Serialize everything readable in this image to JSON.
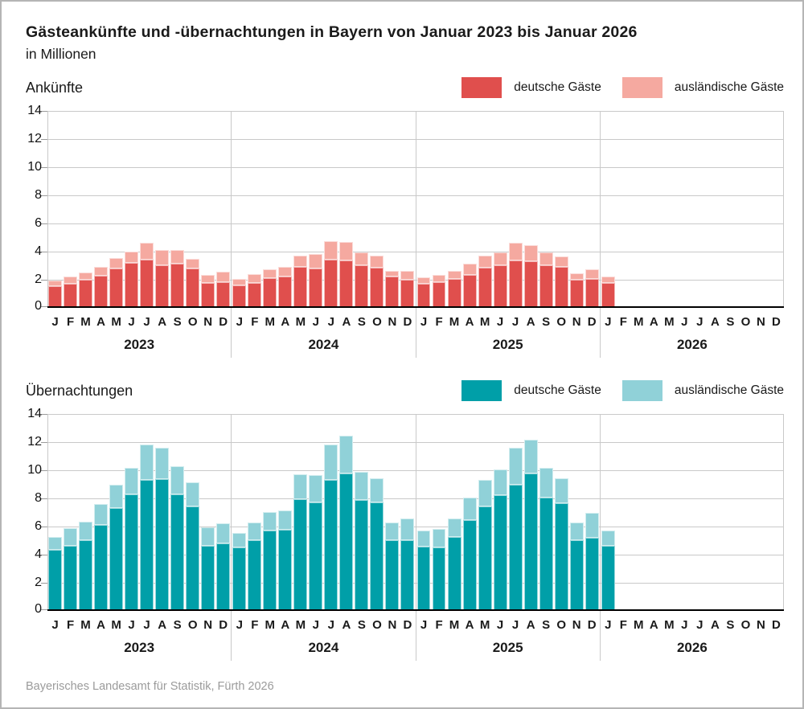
{
  "title": "Gästeankünfte und -übernachtungen in Bayern von Januar 2023 bis Januar 2026",
  "subtitle": "in Millionen",
  "source": "Bayerisches Landesamt für Statistik, Fürth 2026",
  "chart_data": [
    {
      "type": "bar",
      "stacked": true,
      "section_label": "Ankünfte",
      "unit": "Millionen",
      "ylim": [
        0,
        14
      ],
      "ytick_step": 2,
      "yticks": [
        0,
        2,
        4,
        6,
        8,
        10,
        12,
        14
      ],
      "grid": true,
      "legend_position": "top-right",
      "years": [
        "2023",
        "2024",
        "2025",
        "2026"
      ],
      "months": [
        "J",
        "F",
        "M",
        "A",
        "M",
        "J",
        "J",
        "A",
        "S",
        "O",
        "N",
        "D"
      ],
      "legend": [
        {
          "label": "deutsche Gäste",
          "color": "#e04f4d"
        },
        {
          "label": "ausländische Gäste",
          "color": "#f5a9a0"
        }
      ],
      "series": [
        {
          "name": "deutsche Gäste",
          "color": "#e04f4d",
          "values_by_year": {
            "2023": [
              1.55,
              1.7,
              2.0,
              2.3,
              2.8,
              3.2,
              3.45,
              3.0,
              3.15,
              2.8,
              1.75,
              1.8
            ],
            "2024": [
              1.6,
              1.75,
              2.1,
              2.2,
              2.9,
              2.8,
              3.45,
              3.35,
              3.0,
              2.85,
              2.2,
              2.0
            ],
            "2025": [
              1.7,
              1.8,
              2.05,
              2.35,
              2.85,
              3.05,
              3.35,
              3.3,
              3.0,
              2.9,
              2.0,
              2.05
            ],
            "2026": [
              1.75,
              null,
              null,
              null,
              null,
              null,
              null,
              null,
              null,
              null,
              null,
              null
            ]
          }
        },
        {
          "name": "ausländische Gäste",
          "color": "#f5a9a0",
          "values_by_year": {
            "2023": [
              0.4,
              0.5,
              0.5,
              0.6,
              0.75,
              0.8,
              1.2,
              1.1,
              0.95,
              0.7,
              0.55,
              0.75
            ],
            "2024": [
              0.45,
              0.6,
              0.65,
              0.7,
              0.8,
              1.05,
              1.3,
              1.3,
              0.9,
              0.85,
              0.4,
              0.65
            ],
            "2025": [
              0.45,
              0.5,
              0.55,
              0.8,
              0.85,
              0.9,
              1.25,
              1.15,
              0.9,
              0.75,
              0.45,
              0.7
            ],
            "2026": [
              0.45,
              null,
              null,
              null,
              null,
              null,
              null,
              null,
              null,
              null,
              null,
              null
            ]
          }
        }
      ]
    },
    {
      "type": "bar",
      "stacked": true,
      "section_label": "Übernachtungen",
      "unit": "Millionen",
      "ylim": [
        0,
        14
      ],
      "ytick_step": 2,
      "yticks": [
        0,
        2,
        4,
        6,
        8,
        10,
        12,
        14
      ],
      "grid": true,
      "legend_position": "top-right",
      "years": [
        "2023",
        "2024",
        "2025",
        "2026"
      ],
      "months": [
        "J",
        "F",
        "M",
        "A",
        "M",
        "J",
        "J",
        "A",
        "S",
        "O",
        "N",
        "D"
      ],
      "legend": [
        {
          "label": "deutsche Gäste",
          "color": "#009fa8"
        },
        {
          "label": "ausländische Gäste",
          "color": "#90d1d8"
        }
      ],
      "series": [
        {
          "name": "deutsche Gäste",
          "color": "#009fa8",
          "values_by_year": {
            "2023": [
              4.35,
              4.65,
              5.0,
              6.1,
              7.3,
              8.3,
              9.3,
              9.35,
              8.3,
              7.4,
              4.65,
              4.8
            ],
            "2024": [
              4.5,
              5.0,
              5.7,
              5.75,
              7.95,
              7.7,
              9.3,
              9.75,
              7.9,
              7.7,
              5.05,
              5.05
            ],
            "2025": [
              4.55,
              4.5,
              5.25,
              6.45,
              7.4,
              8.25,
              8.95,
              9.75,
              8.05,
              7.65,
              5.05,
              5.2
            ],
            "2026": [
              4.6,
              null,
              null,
              null,
              null,
              null,
              null,
              null,
              null,
              null,
              null,
              null
            ]
          }
        },
        {
          "name": "ausländische Gäste",
          "color": "#90d1d8",
          "values_by_year": {
            "2023": [
              0.9,
              1.25,
              1.3,
              1.5,
              1.65,
              1.9,
              2.5,
              2.2,
              2.0,
              1.7,
              1.3,
              1.45
            ],
            "2024": [
              1.05,
              1.25,
              1.3,
              1.4,
              1.75,
              1.95,
              2.5,
              2.7,
              2.0,
              1.7,
              1.25,
              1.55
            ],
            "2025": [
              1.15,
              1.3,
              1.3,
              1.6,
              1.9,
              1.85,
              2.6,
              2.4,
              2.1,
              1.75,
              1.25,
              1.75
            ],
            "2026": [
              1.1,
              null,
              null,
              null,
              null,
              null,
              null,
              null,
              null,
              null,
              null,
              null
            ]
          }
        }
      ]
    }
  ]
}
